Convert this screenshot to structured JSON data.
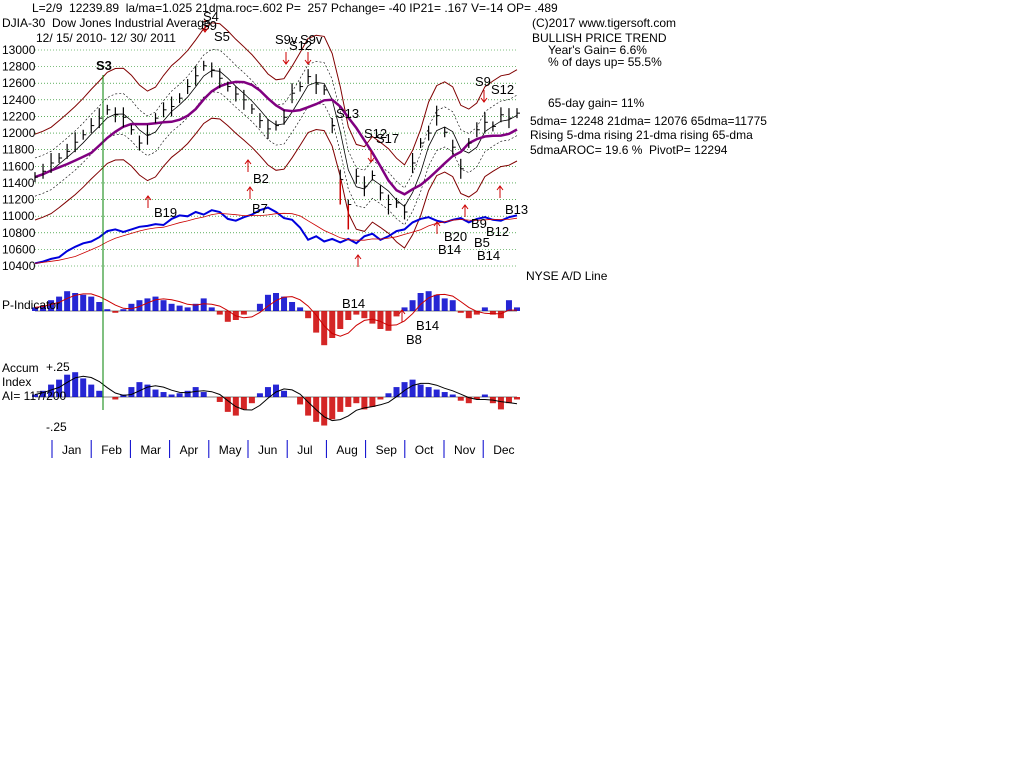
{
  "header": {
    "stats_line": "L=2/9  12239.89  la/ma=1.025 21dma.roc=.602 P=  257 Pchange= -40 IP21= .167 V=-14 OP= .489",
    "index_name": "DJIA-30  Dow Jones Industrial Average",
    "date_range": "12/ 15/ 2010- 12/ 30/ 2011",
    "copyright": "(C)2017 www.tigersoft.com"
  },
  "info_panel": {
    "trend_title": "BULLISH PRICE TREND",
    "years_gain": "Year's Gain= 6.6%",
    "pct_days_up": "% of days up= 55.5%",
    "gain_65day": "65-day gain= 11%",
    "dma_values": "5dma= 12248 21dma= 12076 65dma=11775",
    "rising_line": "Rising 5-dma rising 21-dma rising 65-dma",
    "aroc_line": "5dmaAROC= 19.6 %  PivotP= 12294"
  },
  "panels": {
    "ad_line_label": "NYSE A/D Line",
    "p_indicator_label": "P-Indicator",
    "accum_label_1": "Accum",
    "accum_label_2": "Index",
    "accum_label_3": "AI= 117/200",
    "accum_top": "+.25",
    "accum_bottom": "-.25"
  },
  "chart_data": {
    "type": "line",
    "title": "DJIA-30  Dow Jones Industrial Average",
    "price_axis": {
      "ticks": [
        "13000",
        "12800",
        "12600",
        "12400",
        "12200",
        "12000",
        "11800",
        "11600",
        "11400",
        "11200",
        "11000",
        "10800",
        "10600",
        "10400"
      ],
      "ylim": [
        10400,
        13000
      ]
    },
    "months": [
      "Jan",
      "Feb",
      "Mar",
      "Apr",
      "May",
      "Jun",
      "Jul",
      "Aug",
      "Sep",
      "Oct",
      "Nov",
      "Dec"
    ],
    "price_series": {
      "name": "DJIA",
      "x": [
        0,
        8,
        16,
        24,
        32,
        40,
        48,
        56,
        64,
        72,
        80,
        88,
        96,
        104,
        112,
        120,
        128,
        136,
        144,
        152,
        160,
        168,
        176,
        184,
        192,
        200,
        208,
        216,
        224,
        232,
        240,
        248,
        256,
        264,
        272,
        280,
        288,
        296,
        304,
        312,
        320,
        328,
        336,
        344,
        352,
        360,
        368,
        376,
        384,
        392,
        400,
        408,
        416,
        424,
        432,
        440,
        448,
        456,
        464,
        472,
        480
      ],
      "values": [
        11470,
        11540,
        11640,
        11700,
        11780,
        11890,
        11980,
        12090,
        12180,
        12280,
        12220,
        12190,
        12040,
        11880,
        11980,
        12180,
        12280,
        12320,
        12420,
        12560,
        12690,
        12810,
        12760,
        12660,
        12560,
        12470,
        12400,
        12290,
        12150,
        12050,
        12090,
        12190,
        12480,
        12560,
        12680,
        12590,
        12520,
        12090,
        11440,
        11140,
        11480,
        11360,
        11490,
        11280,
        11140,
        11160,
        11050,
        11640,
        11880,
        12000,
        12210,
        12010,
        11830,
        11570,
        11880,
        12040,
        12130,
        12080,
        12220,
        12180,
        12240
      ]
    },
    "ad_line": {
      "name": "NYSE A/D Line",
      "values": [
        0.33,
        0.35,
        0.38,
        0.4,
        0.47,
        0.52,
        0.56,
        0.58,
        0.63,
        0.7,
        0.72,
        0.69,
        0.72,
        0.75,
        0.76,
        0.78,
        0.77,
        0.84,
        0.88,
        0.87,
        0.92,
        0.89,
        0.94,
        0.92,
        0.84,
        0.82,
        0.86,
        0.89,
        0.94,
        0.97,
        0.92,
        0.85,
        0.83,
        0.74,
        0.6,
        0.64,
        0.58,
        0.61,
        0.57,
        0.61,
        0.56,
        0.64,
        0.67,
        0.6,
        0.64,
        0.7,
        0.72,
        0.8,
        0.84,
        0.86,
        0.82,
        0.8,
        0.83,
        0.85,
        0.8,
        0.84,
        0.86,
        0.83,
        0.82,
        0.86,
        0.88
      ]
    },
    "p_indicator": {
      "name": "P-Indicator",
      "values": [
        0.1,
        0.15,
        0.3,
        0.4,
        0.55,
        0.5,
        0.45,
        0.4,
        0.25,
        0.05,
        -0.05,
        0.05,
        0.2,
        0.3,
        0.35,
        0.4,
        0.3,
        0.2,
        0.15,
        0.1,
        0.2,
        0.35,
        0.1,
        -0.1,
        -0.3,
        -0.25,
        -0.1,
        0.0,
        0.2,
        0.45,
        0.5,
        0.4,
        0.25,
        0.1,
        -0.2,
        -0.6,
        -0.95,
        -0.75,
        -0.5,
        -0.25,
        -0.1,
        -0.2,
        -0.35,
        -0.5,
        -0.55,
        -0.15,
        0.1,
        0.3,
        0.5,
        0.55,
        0.45,
        0.35,
        0.3,
        -0.05,
        -0.2,
        -0.1,
        0.1,
        -0.1,
        -0.2,
        0.3,
        0.1
      ]
    },
    "accum_index": {
      "name": "AI",
      "values": [
        0.02,
        0.05,
        0.1,
        0.14,
        0.18,
        0.2,
        0.15,
        0.1,
        0.05,
        0.0,
        -0.02,
        0.02,
        0.08,
        0.12,
        0.1,
        0.06,
        0.04,
        0.02,
        0.03,
        0.05,
        0.08,
        0.04,
        0.0,
        -0.04,
        -0.12,
        -0.15,
        -0.1,
        -0.05,
        0.03,
        0.08,
        0.1,
        0.05,
        0.0,
        -0.06,
        -0.15,
        -0.2,
        -0.23,
        -0.18,
        -0.12,
        -0.08,
        -0.05,
        -0.1,
        -0.08,
        -0.02,
        0.03,
        0.08,
        0.12,
        0.14,
        0.1,
        0.08,
        0.06,
        0.04,
        0.02,
        -0.03,
        -0.05,
        -0.02,
        0.02,
        -0.05,
        -0.1,
        -0.05,
        -0.02
      ],
      "ylim": [
        -0.25,
        0.25
      ]
    },
    "signals": [
      {
        "label": "S3",
        "type": "sell"
      },
      {
        "label": "S9",
        "type": "sell"
      },
      {
        "label": "S4",
        "type": "sell"
      },
      {
        "label": "S5",
        "type": "sell"
      },
      {
        "label": "S9v",
        "type": "sell"
      },
      {
        "label": "S12",
        "type": "sell"
      },
      {
        "label": "S9v",
        "type": "sell"
      },
      {
        "label": "S13",
        "type": "sell"
      },
      {
        "label": "S12",
        "type": "sell"
      },
      {
        "label": "S17",
        "type": "sell"
      },
      {
        "label": "S9",
        "type": "sell"
      },
      {
        "label": "S12",
        "type": "sell"
      },
      {
        "label": "B19",
        "type": "buy"
      },
      {
        "label": "B2",
        "type": "buy"
      },
      {
        "label": "B7",
        "type": "buy"
      },
      {
        "label": "B13",
        "type": "buy"
      },
      {
        "label": "B9",
        "type": "buy"
      },
      {
        "label": "B20",
        "type": "buy"
      },
      {
        "label": "B5",
        "type": "buy"
      },
      {
        "label": "B12",
        "type": "buy"
      },
      {
        "label": "B14",
        "type": "buy"
      },
      {
        "label": "B14",
        "type": "buy"
      },
      {
        "label": "B14",
        "type": "buy"
      },
      {
        "label": "B14",
        "type": "buy"
      },
      {
        "label": "B8",
        "type": "buy"
      }
    ],
    "colors": {
      "price": "#000000",
      "ad_line": "#0000dd",
      "ma_purple": "#800080",
      "band": "#800000",
      "bullish_bar": "#0000cc",
      "bearish_bar": "#cc0000",
      "signal_line": "#008000",
      "grid": "#008000"
    }
  }
}
